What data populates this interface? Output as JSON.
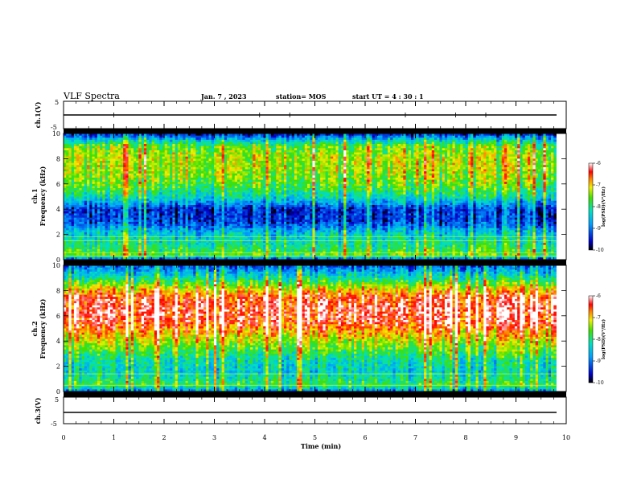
{
  "header": {
    "title": "VLF Spectra",
    "date": "Jan. 7 , 2023",
    "station": "station= MOS",
    "start_ut": "start UT =  4 : 30 : 1"
  },
  "chart_data": [
    {
      "type": "line",
      "name": "ch1-waveform",
      "ylabel": "ch.1(V)",
      "yticks": [
        "5",
        "-5"
      ],
      "ylim": [
        -5,
        5
      ],
      "xlim": [
        0,
        10
      ],
      "series": [
        {
          "x": [
            0,
            9.8
          ],
          "y": [
            0,
            0
          ]
        }
      ]
    },
    {
      "type": "heatmap",
      "name": "ch1-spectrogram",
      "ylabel": "ch.1\nFrequency (kHz)",
      "yticks": [
        "0",
        "2",
        "4",
        "6",
        "8",
        "10"
      ],
      "ylim": [
        0,
        10
      ],
      "xlim": [
        0,
        10
      ],
      "data_extent_x": [
        0,
        9.8
      ],
      "value_range": [
        -10,
        -6
      ],
      "colorbar": {
        "label": "log(PSD)(V²/Hz)",
        "ticks": [
          "-6",
          "-7",
          "-8",
          "-9",
          "-10"
        ]
      },
      "band_profile": [
        [
          0,
          -9.2
        ],
        [
          0.4,
          -7.6
        ],
        [
          1,
          -8.0
        ],
        [
          2,
          -8.4
        ],
        [
          3,
          -9.3
        ],
        [
          4,
          -9.4
        ],
        [
          5,
          -8.2
        ],
        [
          6,
          -7.6
        ],
        [
          7,
          -7.4
        ],
        [
          8,
          -7.3
        ],
        [
          9,
          -7.6
        ],
        [
          9.5,
          -8.5
        ],
        [
          10,
          -9.6
        ]
      ]
    },
    {
      "type": "heatmap",
      "name": "ch2-spectrogram",
      "ylabel": "ch.2\nFrequency (kHz)",
      "yticks": [
        "0",
        "2",
        "4",
        "6",
        "8",
        "10"
      ],
      "ylim": [
        0,
        10
      ],
      "xlim": [
        0,
        10
      ],
      "data_extent_x": [
        0,
        9.8
      ],
      "value_range": [
        -10,
        -6
      ],
      "colorbar": {
        "label": "log(PSD)(V²/Hz)",
        "ticks": [
          "-6",
          "-7",
          "-8",
          "-9",
          "-10"
        ]
      },
      "band_profile": [
        [
          0,
          -9.0
        ],
        [
          0.5,
          -7.8
        ],
        [
          1.5,
          -8.4
        ],
        [
          2.5,
          -8.2
        ],
        [
          3.5,
          -7.6
        ],
        [
          4.5,
          -7.0
        ],
        [
          5.5,
          -6.4
        ],
        [
          6.5,
          -6.3
        ],
        [
          7.5,
          -6.5
        ],
        [
          8.3,
          -7.3
        ],
        [
          9,
          -8.2
        ],
        [
          10,
          -9.2
        ]
      ]
    },
    {
      "type": "line",
      "name": "ch3-waveform",
      "ylabel": "ch.3(V)",
      "yticks": [
        "5",
        "-5"
      ],
      "ylim": [
        -5,
        5
      ],
      "xlim": [
        0,
        10
      ],
      "series": [
        {
          "x": [
            0,
            9.8
          ],
          "y": [
            -1.5,
            -1.5
          ]
        }
      ]
    }
  ],
  "xaxis": {
    "label": "Time (min)",
    "ticks": [
      "0",
      "1",
      "2",
      "3",
      "4",
      "5",
      "6",
      "7",
      "8",
      "9",
      "10"
    ]
  },
  "colors": {
    "axis": "#000000",
    "background": "#ffffff"
  }
}
